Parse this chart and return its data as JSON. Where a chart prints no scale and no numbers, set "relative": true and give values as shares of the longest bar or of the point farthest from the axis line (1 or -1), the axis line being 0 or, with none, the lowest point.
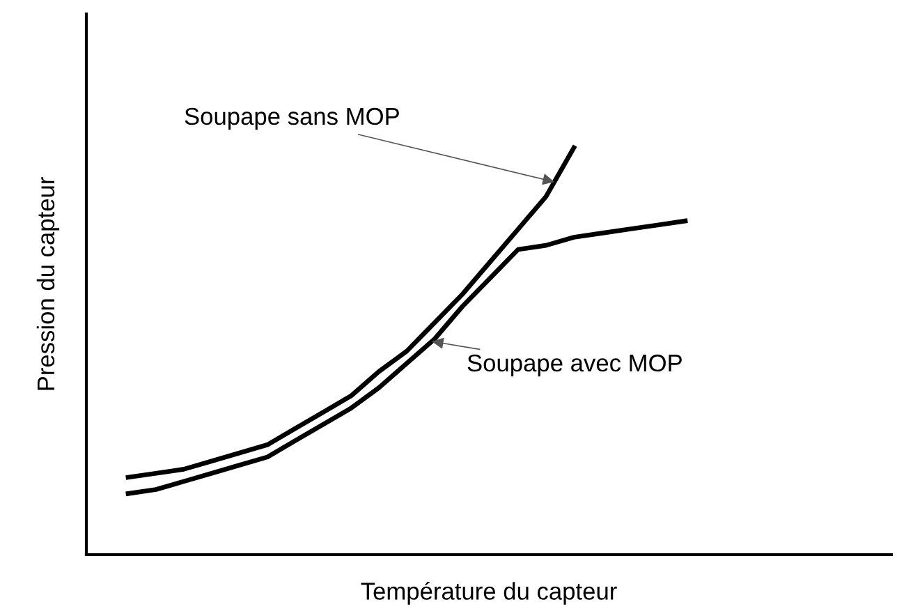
{
  "chart_data": {
    "type": "line",
    "relative": true,
    "xlabel": "Température du capteur",
    "ylabel": "Pression du capteur",
    "categories": [
      null,
      null,
      null,
      null,
      null,
      null,
      null,
      null,
      null,
      null,
      null,
      null,
      null,
      null,
      null,
      null,
      null,
      null,
      null,
      null,
      null
    ],
    "series": [
      {
        "name": "Soupape sans MOP",
        "color": "#000000",
        "values": [
          0.19,
          0.2,
          0.21,
          0.23,
          0.25,
          0.27,
          0.31,
          0.35,
          0.39,
          0.45,
          0.5,
          0.57,
          0.64,
          0.72,
          0.8,
          0.88,
          1.0,
          null,
          null,
          null,
          null
        ]
      },
      {
        "name": "Soupape avec MOP",
        "color": "#000000",
        "values": [
          0.15,
          0.16,
          0.18,
          0.2,
          0.22,
          0.24,
          0.28,
          0.32,
          0.36,
          0.41,
          0.47,
          0.53,
          0.61,
          0.68,
          0.75,
          0.76,
          0.78,
          0.79,
          0.8,
          0.81,
          0.82
        ]
      }
    ],
    "legend": false,
    "tick_labels": false,
    "marker": "none",
    "line_style": "solid"
  }
}
